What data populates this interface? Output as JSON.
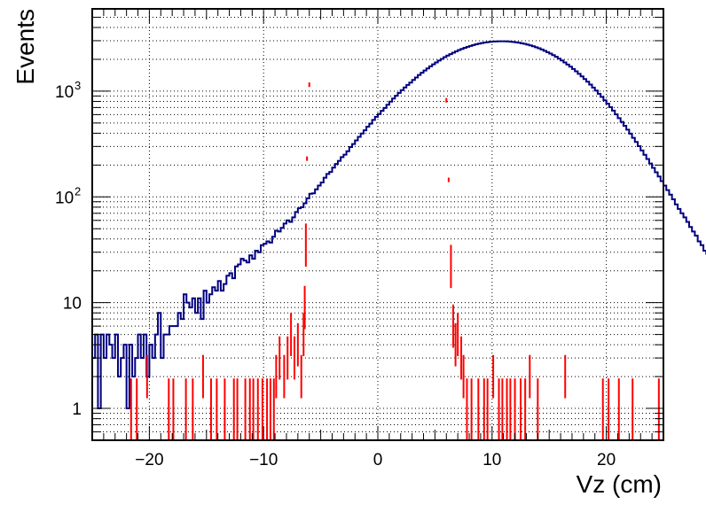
{
  "chart_data": {
    "type": "histogram",
    "xlabel": "Vz (cm)",
    "ylabel": "Events",
    "xlim": [
      -25,
      25
    ],
    "ylim": [
      0.5,
      6000
    ],
    "yscale": "log",
    "grid": true,
    "x_ticks": [
      {
        "value": -20,
        "label": "−20"
      },
      {
        "value": -10,
        "label": "−10"
      },
      {
        "value": 0,
        "label": "0"
      },
      {
        "value": 10,
        "label": "10"
      },
      {
        "value": 20,
        "label": "20"
      }
    ],
    "y_ticks": [
      {
        "value": 1,
        "label": "1",
        "sup": ""
      },
      {
        "value": 10,
        "label": "10",
        "sup": ""
      },
      {
        "value": 100,
        "label": "10",
        "sup": "2"
      },
      {
        "value": 1000,
        "label": "10",
        "sup": "3"
      }
    ],
    "series": [
      {
        "color": "#000080",
        "style": "step",
        "bin_width": 0.25,
        "x_start": -25,
        "values": [
          3,
          5,
          1,
          5,
          3,
          5,
          4,
          3,
          5,
          2,
          3,
          4,
          1,
          4,
          2,
          3,
          5,
          3,
          5,
          2,
          4,
          3,
          5,
          8,
          3,
          5,
          5,
          6,
          6,
          6,
          8,
          7,
          12,
          10,
          9,
          11,
          8,
          11,
          7,
          13,
          10,
          12,
          14,
          13,
          16,
          13,
          15,
          18,
          19,
          17,
          22,
          23,
          26,
          25,
          24,
          28,
          26,
          31,
          30,
          35,
          36,
          38,
          37,
          42,
          48,
          47,
          51,
          56,
          60,
          58,
          64,
          72,
          78,
          80,
          87,
          97,
          107,
          108,
          118,
          128,
          137,
          152,
          165,
          172,
          189,
          205,
          219,
          238,
          251,
          270,
          296,
          316,
          342,
          370,
          397,
          426,
          462,
          493,
          534,
          572,
          608,
          652,
          694,
          744,
          796,
          851,
          905,
          962,
          1022,
          1083,
          1146,
          1206,
          1276,
          1347,
          1421,
          1493,
          1566,
          1640,
          1718,
          1794,
          1869,
          1945,
          2019,
          2097,
          2169,
          2240,
          2310,
          2379,
          2445,
          2508,
          2567,
          2622,
          2676,
          2729,
          2773,
          2816,
          2850,
          2880,
          2907,
          2929,
          2946,
          2956,
          2960,
          2962,
          2959,
          2952,
          2939,
          2919,
          2896,
          2869,
          2835,
          2799,
          2757,
          2710,
          2657,
          2600,
          2542,
          2477,
          2409,
          2339,
          2266,
          2189,
          2110,
          2029,
          1949,
          1868,
          1786,
          1704,
          1622,
          1540,
          1459,
          1380,
          1302,
          1228,
          1153,
          1080,
          1012,
          945,
          882,
          820,
          762,
          706,
          654,
          603,
          556,
          512,
          470,
          432,
          396,
          362,
          331,
          302,
          275,
          250,
          228,
          207,
          188,
          171,
          156,
          141,
          128,
          116,
          105,
          95,
          85,
          77,
          70,
          64,
          58,
          52,
          47,
          43,
          38,
          35,
          31,
          29,
          26,
          24,
          22,
          20,
          18,
          16,
          15,
          14,
          12,
          11,
          10,
          9,
          9,
          8,
          7,
          7,
          6,
          6,
          5,
          5,
          5,
          4,
          4,
          4,
          4,
          4,
          3,
          3,
          3,
          3,
          3,
          3,
          5
        ]
      },
      {
        "color": "#ff0000",
        "style": "markers",
        "points": [
          {
            "x": -21.6,
            "y": 1.2
          },
          {
            "x": -21.1,
            "y": 1.2
          },
          {
            "x": -20.2,
            "y": 2
          },
          {
            "x": -18.3,
            "y": 1.2
          },
          {
            "x": -17.9,
            "y": 1.2
          },
          {
            "x": -16.8,
            "y": 1.2
          },
          {
            "x": -16.2,
            "y": 1.2
          },
          {
            "x": -15.3,
            "y": 2
          },
          {
            "x": -14.6,
            "y": 1.2
          },
          {
            "x": -14.1,
            "y": 1.2
          },
          {
            "x": -13.4,
            "y": 1.2
          },
          {
            "x": -12.6,
            "y": 1.2
          },
          {
            "x": -12.3,
            "y": 1.2
          },
          {
            "x": -11.6,
            "y": 1.2
          },
          {
            "x": -11.2,
            "y": 1.2
          },
          {
            "x": -10.9,
            "y": 1.2
          },
          {
            "x": -10.5,
            "y": 1.2
          },
          {
            "x": -10.1,
            "y": 1.2
          },
          {
            "x": -9.7,
            "y": 1.2
          },
          {
            "x": -9.4,
            "y": 1.2
          },
          {
            "x": -9.1,
            "y": 1.2
          },
          {
            "x": -8.9,
            "y": 2
          },
          {
            "x": -8.6,
            "y": 3
          },
          {
            "x": -8.2,
            "y": 2
          },
          {
            "x": -7.9,
            "y": 3
          },
          {
            "x": -7.6,
            "y": 5
          },
          {
            "x": -7.3,
            "y": 3
          },
          {
            "x": -7.0,
            "y": 4
          },
          {
            "x": -6.7,
            "y": 2
          },
          {
            "x": -6.5,
            "y": 5
          },
          {
            "x": -6.4,
            "y": 9
          },
          {
            "x": -6.3,
            "y": 35
          },
          {
            "x": -6.2,
            "y": 230
          },
          {
            "x": -6.0,
            "y": 1150
          },
          {
            "x": 6.0,
            "y": 820
          },
          {
            "x": 6.2,
            "y": 145
          },
          {
            "x": 6.4,
            "y": 22
          },
          {
            "x": 6.6,
            "y": 6
          },
          {
            "x": 6.8,
            "y": 4
          },
          {
            "x": 7.0,
            "y": 5
          },
          {
            "x": 7.3,
            "y": 3
          },
          {
            "x": 7.5,
            "y": 2
          },
          {
            "x": 7.8,
            "y": 1.2
          },
          {
            "x": 8.2,
            "y": 1.2
          },
          {
            "x": 8.8,
            "y": 1.2
          },
          {
            "x": 9.3,
            "y": 1.2
          },
          {
            "x": 9.6,
            "y": 1.2
          },
          {
            "x": 10.1,
            "y": 2
          },
          {
            "x": 10.6,
            "y": 1.2
          },
          {
            "x": 10.9,
            "y": 1.2
          },
          {
            "x": 11.3,
            "y": 1.2
          },
          {
            "x": 11.6,
            "y": 1.2
          },
          {
            "x": 12.0,
            "y": 1.2
          },
          {
            "x": 12.5,
            "y": 1.2
          },
          {
            "x": 12.9,
            "y": 1.2
          },
          {
            "x": 13.3,
            "y": 2
          },
          {
            "x": 14.0,
            "y": 1.2
          },
          {
            "x": 16.4,
            "y": 2
          },
          {
            "x": 19.7,
            "y": 1.2
          },
          {
            "x": 20.2,
            "y": 1.2
          },
          {
            "x": 21.1,
            "y": 1.2
          },
          {
            "x": 22.3,
            "y": 1.2
          },
          {
            "x": 24.6,
            "y": 1.2
          }
        ]
      }
    ]
  }
}
